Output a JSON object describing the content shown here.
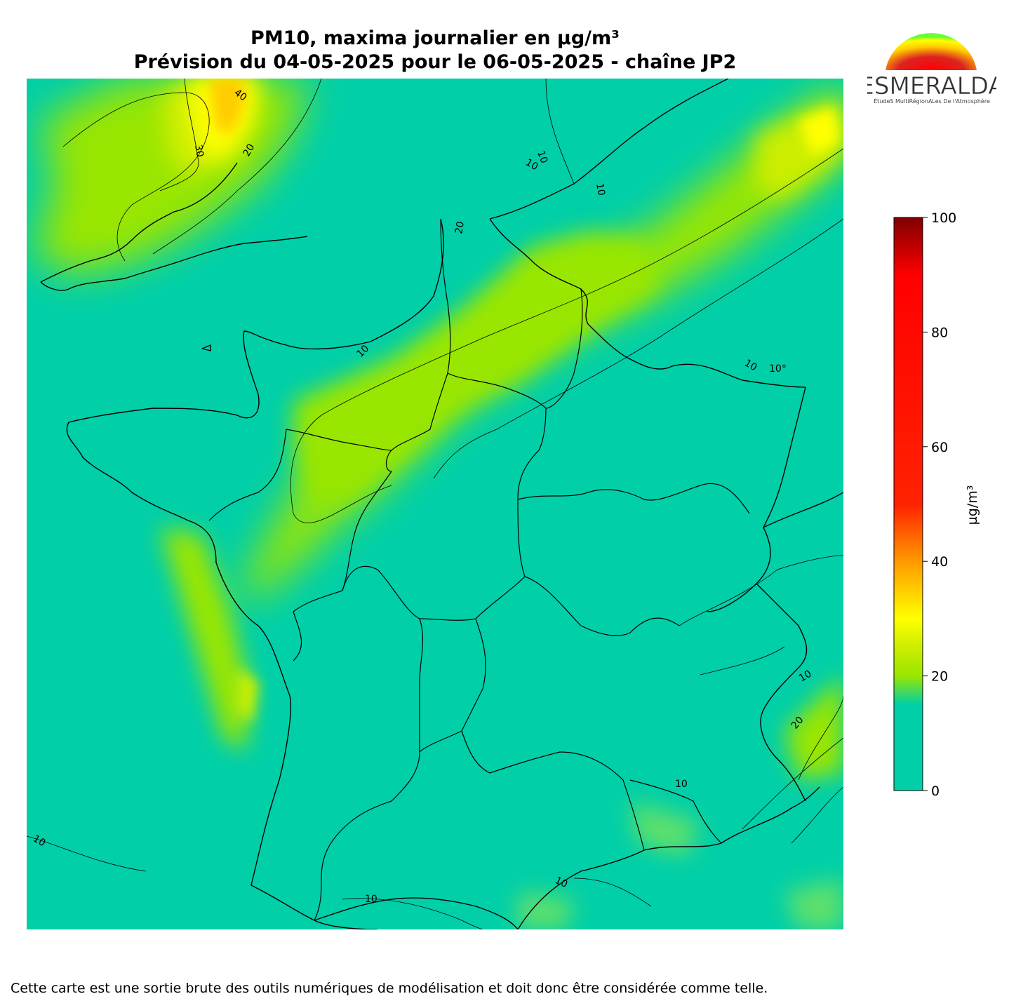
{
  "header": {
    "title_line1": "PM10, maxima journalier en µg/m³",
    "title_line2": "Prévision du 04-05-2025 pour le 06-05-2025 - chaîne JP2"
  },
  "logo": {
    "name": "ESMERALDA",
    "tagline": "ÉtudeS MultiRégionALes De l'Atmosphère"
  },
  "colorbar": {
    "label": "µg/m³",
    "ticks": [
      "0",
      "20",
      "40",
      "60",
      "80",
      "100"
    ],
    "min": 0,
    "max": 100,
    "stops": [
      {
        "value": 0,
        "color": "#00cfa8"
      },
      {
        "value": 15,
        "color": "#00cfa8"
      },
      {
        "value": 20,
        "color": "#99e600"
      },
      {
        "value": 25,
        "color": "#ccee00"
      },
      {
        "value": 30,
        "color": "#ffff00"
      },
      {
        "value": 40,
        "color": "#ff9900"
      },
      {
        "value": 50,
        "color": "#ff2200"
      },
      {
        "value": 90,
        "color": "#ff0000"
      },
      {
        "value": 100,
        "color": "#7f0000"
      }
    ]
  },
  "map": {
    "background_color": "#00cfa8",
    "contour_labels": [
      "40",
      "30",
      "20",
      "10",
      "10",
      "10",
      "10",
      "10°",
      "10",
      "20",
      "10",
      "10",
      "10",
      "10",
      "10",
      "20"
    ]
  },
  "footer": {
    "disclaimer": "Cette carte est une sortie brute des outils numériques de modélisation et doit donc être considérée comme telle."
  }
}
